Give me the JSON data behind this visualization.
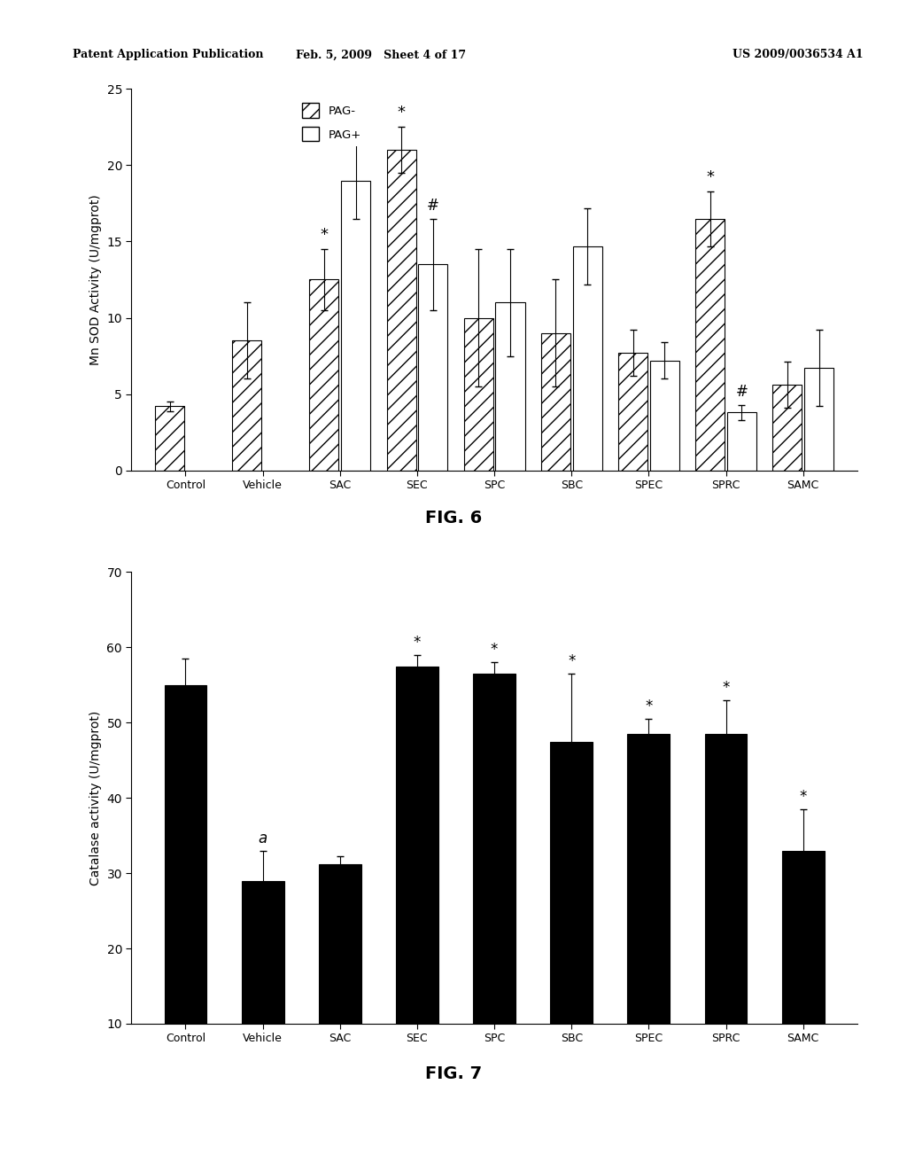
{
  "fig6": {
    "categories": [
      "Control",
      "Vehicle",
      "SAC",
      "SEC",
      "SPC",
      "SBC",
      "SPEC",
      "SPRC",
      "SAMC"
    ],
    "pag_minus": [
      4.2,
      8.5,
      12.5,
      21.0,
      10.0,
      9.0,
      7.7,
      16.5,
      5.6
    ],
    "pag_plus": [
      null,
      null,
      19.0,
      13.5,
      11.0,
      14.7,
      7.2,
      3.8,
      6.7
    ],
    "pag_minus_err": [
      0.3,
      2.5,
      2.0,
      1.5,
      4.5,
      3.5,
      1.5,
      1.8,
      1.5
    ],
    "pag_plus_err": [
      null,
      null,
      2.5,
      3.0,
      3.5,
      2.5,
      1.2,
      0.5,
      2.5
    ],
    "pag_minus_annotations": [
      "",
      "",
      "*",
      "*",
      "",
      "",
      "",
      "*",
      ""
    ],
    "pag_plus_annotations": [
      "",
      "",
      "",
      "#",
      "",
      "",
      "",
      "#",
      ""
    ],
    "ylabel": "Mn SOD Activity (U/mgprot)",
    "ylim": [
      0,
      25
    ],
    "yticks": [
      0,
      5,
      10,
      15,
      20,
      25
    ]
  },
  "fig7": {
    "categories": [
      "Control",
      "Vehicle",
      "SAC",
      "SEC",
      "SPC",
      "SBC",
      "SPEC",
      "SPRC",
      "SAMC"
    ],
    "values": [
      55.0,
      29.0,
      31.2,
      57.5,
      56.5,
      47.5,
      48.5,
      48.5,
      33.0
    ],
    "errors": [
      3.5,
      4.0,
      1.0,
      1.5,
      1.5,
      9.0,
      2.0,
      4.5,
      5.5
    ],
    "annotations": [
      "",
      "a",
      "",
      "*",
      "*",
      "*",
      "*",
      "*",
      "*"
    ],
    "ylabel": "Catalase activity (U/mgprot)",
    "ylim": [
      10,
      70
    ],
    "yticks": [
      10,
      20,
      30,
      40,
      50,
      60,
      70
    ]
  },
  "page_header_left": "Patent Application Publication",
  "page_header_mid": "Feb. 5, 2009   Sheet 4 of 17",
  "page_header_right": "US 2009/0036534 A1"
}
